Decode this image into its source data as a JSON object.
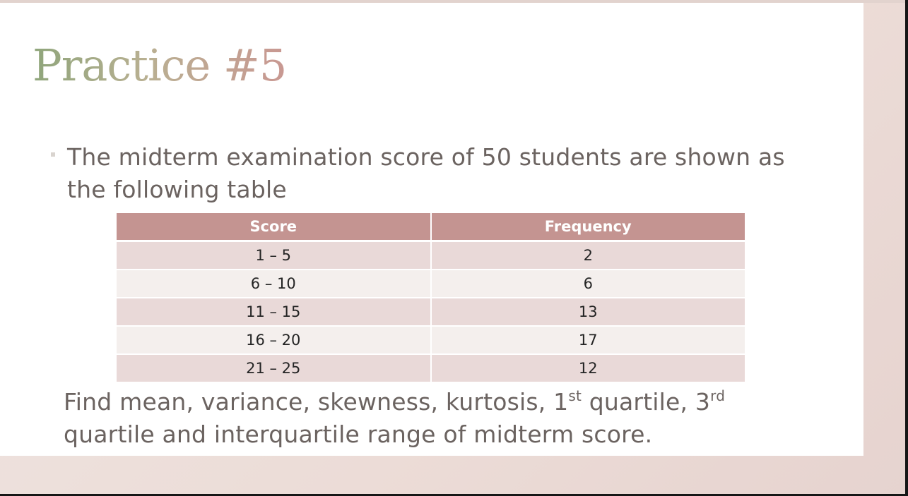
{
  "slide": {
    "title": "Practice #5",
    "bullet": "The midterm examination score of 50 students are shown as the following table",
    "table": {
      "headers": [
        "Score",
        "Frequency"
      ],
      "rows": [
        [
          "1 – 5",
          "2"
        ],
        [
          "6 – 10",
          "6"
        ],
        [
          "11 – 15",
          "13"
        ],
        [
          "16 – 20",
          "17"
        ],
        [
          "21 – 25",
          "12"
        ]
      ]
    },
    "question": {
      "part1": "Find mean, variance, skewness, kurtosis, 1",
      "sup1": "st",
      "part2": " quartile, 3",
      "sup2": "rd",
      "part3": " quartile and interquartile range of midterm score."
    }
  },
  "colors": {
    "header_fill": "#c49491",
    "row_odd": "#e9d9d8",
    "row_even": "#f4efed",
    "body_text": "#6b6360"
  }
}
